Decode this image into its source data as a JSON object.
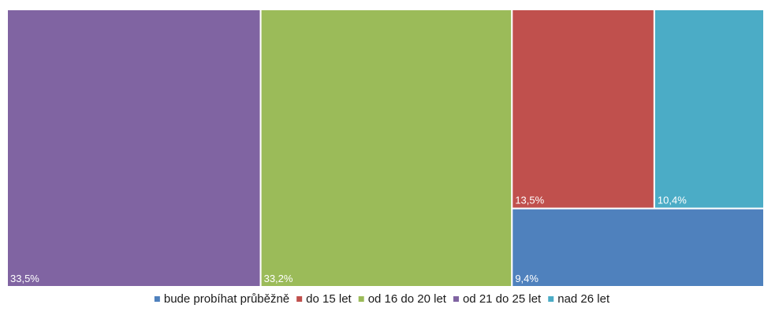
{
  "chart_data": {
    "type": "treemap",
    "title": "",
    "legend_position": "bottom",
    "series": [
      {
        "name": "bude probíhat průběžně",
        "value": 9.4,
        "label": "9,4%",
        "color": "#4F81BD"
      },
      {
        "name": "do 15 let",
        "value": 13.5,
        "label": "13,5%",
        "color": "#C0504D"
      },
      {
        "name": "od 16 do 20 let",
        "value": 33.2,
        "label": "33,2%",
        "color": "#9BBB59"
      },
      {
        "name": "od 21 do 25 let",
        "value": 33.5,
        "label": "33,5%",
        "color": "#8064A2"
      },
      {
        "name": "nad 26 let",
        "value": 10.4,
        "label": "10,4%",
        "color": "#4BACC6"
      }
    ]
  }
}
